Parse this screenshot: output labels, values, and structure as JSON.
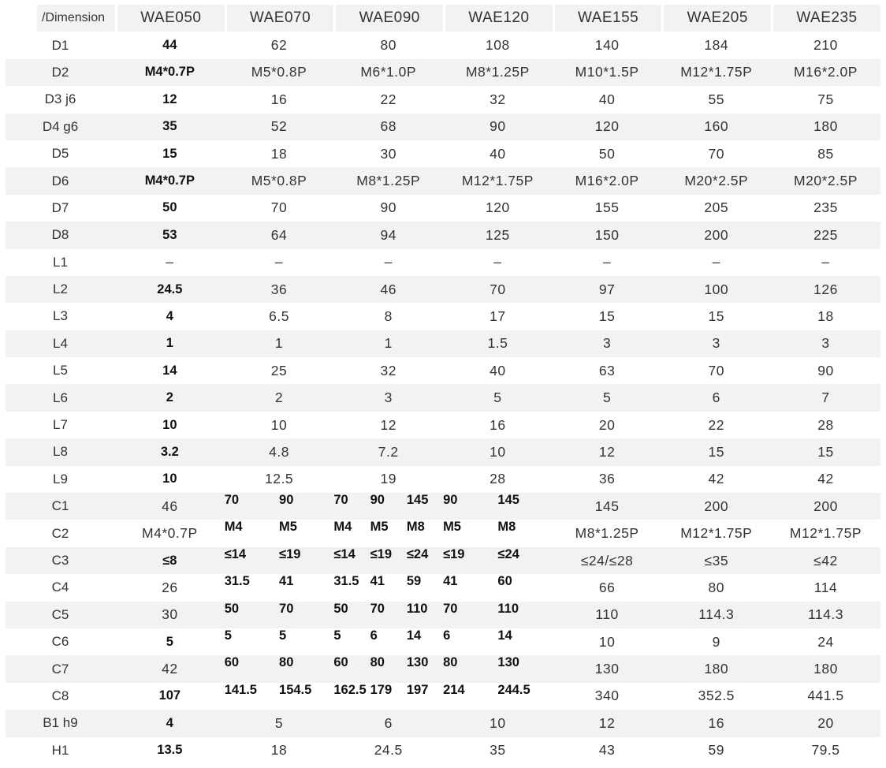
{
  "table": {
    "corner_label": "/Dimension",
    "columns": [
      "WAE050",
      "WAE070",
      "WAE090",
      "WAE120",
      "WAE155",
      "WAE205",
      "WAE235"
    ],
    "rows": [
      {
        "label": "D1",
        "cells": [
          [
            "44"
          ],
          [
            "62"
          ],
          [
            "80"
          ],
          [
            "108"
          ],
          [
            "140"
          ],
          [
            "184"
          ],
          [
            "210"
          ]
        ]
      },
      {
        "label": "D2",
        "cells": [
          [
            "M4*0.7P"
          ],
          [
            "M5*0.8P"
          ],
          [
            "M6*1.0P"
          ],
          [
            "M8*1.25P"
          ],
          [
            "M10*1.5P"
          ],
          [
            "M12*1.75P"
          ],
          [
            "M16*2.0P"
          ]
        ]
      },
      {
        "label": "D3 j6",
        "cells": [
          [
            "12"
          ],
          [
            "16"
          ],
          [
            "22"
          ],
          [
            "32"
          ],
          [
            "40"
          ],
          [
            "55"
          ],
          [
            "75"
          ]
        ]
      },
      {
        "label": "D4 g6",
        "cells": [
          [
            "35"
          ],
          [
            "52"
          ],
          [
            "68"
          ],
          [
            "90"
          ],
          [
            "120"
          ],
          [
            "160"
          ],
          [
            "180"
          ]
        ]
      },
      {
        "label": "D5",
        "cells": [
          [
            "15"
          ],
          [
            "18"
          ],
          [
            "30"
          ],
          [
            "40"
          ],
          [
            "50"
          ],
          [
            "70"
          ],
          [
            "85"
          ]
        ]
      },
      {
        "label": "D6",
        "cells": [
          [
            "M4*0.7P"
          ],
          [
            "M5*0.8P"
          ],
          [
            "M8*1.25P"
          ],
          [
            "M12*1.75P"
          ],
          [
            "M16*2.0P"
          ],
          [
            "M20*2.5P"
          ],
          [
            "M20*2.5P"
          ]
        ]
      },
      {
        "label": "D7",
        "cells": [
          [
            "50"
          ],
          [
            "70"
          ],
          [
            "90"
          ],
          [
            "120"
          ],
          [
            "155"
          ],
          [
            "205"
          ],
          [
            "235"
          ]
        ]
      },
      {
        "label": "D8",
        "cells": [
          [
            "53"
          ],
          [
            "64"
          ],
          [
            "94"
          ],
          [
            "125"
          ],
          [
            "150"
          ],
          [
            "200"
          ],
          [
            "225"
          ]
        ]
      },
      {
        "label": "L1",
        "cells": [
          [
            "–"
          ],
          [
            "–"
          ],
          [
            "–"
          ],
          [
            "–"
          ],
          [
            "–"
          ],
          [
            "–"
          ],
          [
            "–"
          ]
        ]
      },
      {
        "label": "L2",
        "cells": [
          [
            "24.5"
          ],
          [
            "36"
          ],
          [
            "46"
          ],
          [
            "70"
          ],
          [
            "97"
          ],
          [
            "100"
          ],
          [
            "126"
          ]
        ]
      },
      {
        "label": "L3",
        "cells": [
          [
            "4"
          ],
          [
            "6.5"
          ],
          [
            "8"
          ],
          [
            "17"
          ],
          [
            "15"
          ],
          [
            "15"
          ],
          [
            "18"
          ]
        ]
      },
      {
        "label": "L4",
        "cells": [
          [
            "1"
          ],
          [
            "1"
          ],
          [
            "1"
          ],
          [
            "1.5"
          ],
          [
            "3"
          ],
          [
            "3"
          ],
          [
            "3"
          ]
        ]
      },
      {
        "label": "L5",
        "cells": [
          [
            "14"
          ],
          [
            "25"
          ],
          [
            "32"
          ],
          [
            "40"
          ],
          [
            "63"
          ],
          [
            "70"
          ],
          [
            "90"
          ]
        ]
      },
      {
        "label": "L6",
        "cells": [
          [
            "2"
          ],
          [
            "2"
          ],
          [
            "3"
          ],
          [
            "5"
          ],
          [
            "5"
          ],
          [
            "6"
          ],
          [
            "7"
          ]
        ]
      },
      {
        "label": "L7",
        "cells": [
          [
            "10"
          ],
          [
            "10"
          ],
          [
            "12"
          ],
          [
            "16"
          ],
          [
            "20"
          ],
          [
            "22"
          ],
          [
            "28"
          ]
        ]
      },
      {
        "label": "L8",
        "cells": [
          [
            "3.2"
          ],
          [
            "4.8"
          ],
          [
            "7.2"
          ],
          [
            "10"
          ],
          [
            "12"
          ],
          [
            "15"
          ],
          [
            "15"
          ]
        ]
      },
      {
        "label": "L9",
        "cells": [
          [
            "10"
          ],
          [
            "12.5"
          ],
          [
            "19"
          ],
          [
            "28"
          ],
          [
            "36"
          ],
          [
            "42"
          ],
          [
            "42"
          ]
        ]
      },
      {
        "label": "C1",
        "cells": [
          [
            "46"
          ],
          [
            "70",
            "90"
          ],
          [
            "70",
            "90",
            "145"
          ],
          [
            "90",
            "145"
          ],
          [
            "145"
          ],
          [
            "200"
          ],
          [
            "200"
          ]
        ]
      },
      {
        "label": "C2",
        "cells": [
          [
            "M4*0.7P"
          ],
          [
            "M4",
            "M5"
          ],
          [
            "M4",
            "M5",
            "M8"
          ],
          [
            "M5",
            "M8"
          ],
          [
            "M8*1.25P"
          ],
          [
            "M12*1.75P"
          ],
          [
            "M12*1.75P"
          ]
        ]
      },
      {
        "label": "C3",
        "cells": [
          [
            "≤8"
          ],
          [
            "≤14",
            "≤19"
          ],
          [
            "≤14",
            "≤19",
            "≤24"
          ],
          [
            "≤19",
            "≤24"
          ],
          [
            "≤24/≤28"
          ],
          [
            "≤35"
          ],
          [
            "≤42"
          ]
        ]
      },
      {
        "label": "C4",
        "cells": [
          [
            "26"
          ],
          [
            "31.5",
            "41"
          ],
          [
            "31.5",
            "41",
            "59"
          ],
          [
            "41",
            "60"
          ],
          [
            "66"
          ],
          [
            "80"
          ],
          [
            "114"
          ]
        ]
      },
      {
        "label": "C5",
        "cells": [
          [
            "30"
          ],
          [
            "50",
            "70"
          ],
          [
            "50",
            "70",
            "110"
          ],
          [
            "70",
            "110"
          ],
          [
            "110"
          ],
          [
            "114.3"
          ],
          [
            "114.3"
          ]
        ]
      },
      {
        "label": "C6",
        "cells": [
          [
            "5"
          ],
          [
            "5",
            "5"
          ],
          [
            "5",
            "6",
            "14"
          ],
          [
            "6",
            "14"
          ],
          [
            "10"
          ],
          [
            "9"
          ],
          [
            "24"
          ]
        ]
      },
      {
        "label": "C7",
        "cells": [
          [
            "42"
          ],
          [
            "60",
            "80"
          ],
          [
            "60",
            "80",
            "130"
          ],
          [
            "80",
            "130"
          ],
          [
            "130"
          ],
          [
            "180"
          ],
          [
            "180"
          ]
        ]
      },
      {
        "label": "C8",
        "cells": [
          [
            "107"
          ],
          [
            "141.5",
            "154.5"
          ],
          [
            "162.5",
            "179",
            "197"
          ],
          [
            "214",
            "244.5"
          ],
          [
            "340"
          ],
          [
            "352.5"
          ],
          [
            "441.5"
          ]
        ]
      },
      {
        "label": "B1 h9",
        "cells": [
          [
            "4"
          ],
          [
            "5"
          ],
          [
            "6"
          ],
          [
            "10"
          ],
          [
            "12"
          ],
          [
            "16"
          ],
          [
            "20"
          ]
        ]
      },
      {
        "label": "H1",
        "cells": [
          [
            "13.5"
          ],
          [
            "18"
          ],
          [
            "24.5"
          ],
          [
            "35"
          ],
          [
            "43"
          ],
          [
            "59"
          ],
          [
            "79.5"
          ]
        ]
      }
    ]
  }
}
